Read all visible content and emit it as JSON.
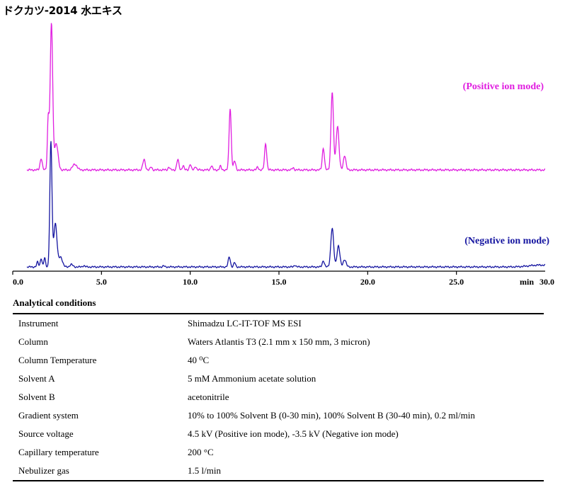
{
  "title": "ドクカツ-2014 水エキス",
  "chart_data": {
    "type": "line",
    "xlim": [
      0.0,
      30.0
    ],
    "xticks": [
      "0.0",
      "5.0",
      "10.0",
      "15.0",
      "20.0",
      "25.0"
    ],
    "xunit_label": "min",
    "xend_label": "30.0",
    "series": [
      {
        "name": "(Positive ion mode)",
        "color": "#e01ee0",
        "baseline_y": 240,
        "peaks": [
          {
            "t": 1.6,
            "h": 0.08,
            "w": 0.06
          },
          {
            "t": 2.0,
            "h": 0.35,
            "w": 0.05
          },
          {
            "t": 2.18,
            "h": 1.0,
            "w": 0.07
          },
          {
            "t": 2.45,
            "h": 0.18,
            "w": 0.1
          },
          {
            "t": 3.5,
            "h": 0.04,
            "w": 0.12
          },
          {
            "t": 7.4,
            "h": 0.07,
            "w": 0.07
          },
          {
            "t": 7.8,
            "h": 0.02,
            "w": 0.05
          },
          {
            "t": 8.8,
            "h": 0.02,
            "w": 0.05
          },
          {
            "t": 9.3,
            "h": 0.07,
            "w": 0.06
          },
          {
            "t": 9.6,
            "h": 0.03,
            "w": 0.05
          },
          {
            "t": 10.0,
            "h": 0.04,
            "w": 0.05
          },
          {
            "t": 10.3,
            "h": 0.025,
            "w": 0.05
          },
          {
            "t": 11.2,
            "h": 0.03,
            "w": 0.05
          },
          {
            "t": 11.7,
            "h": 0.025,
            "w": 0.05
          },
          {
            "t": 12.25,
            "h": 0.42,
            "w": 0.06
          },
          {
            "t": 12.5,
            "h": 0.06,
            "w": 0.06
          },
          {
            "t": 13.8,
            "h": 0.02,
            "w": 0.05
          },
          {
            "t": 14.25,
            "h": 0.18,
            "w": 0.06
          },
          {
            "t": 15.8,
            "h": 0.015,
            "w": 0.05
          },
          {
            "t": 17.5,
            "h": 0.15,
            "w": 0.06
          },
          {
            "t": 18.0,
            "h": 0.53,
            "w": 0.07
          },
          {
            "t": 18.3,
            "h": 0.3,
            "w": 0.08
          },
          {
            "t": 18.7,
            "h": 0.1,
            "w": 0.07
          }
        ]
      },
      {
        "name": "(Negative ion mode)",
        "color": "#1414a0",
        "baseline_y": 377,
        "peaks": [
          {
            "t": 1.4,
            "h": 0.04,
            "w": 0.05
          },
          {
            "t": 1.6,
            "h": 0.07,
            "w": 0.05
          },
          {
            "t": 1.8,
            "h": 0.07,
            "w": 0.05
          },
          {
            "t": 2.15,
            "h": 1.0,
            "w": 0.06
          },
          {
            "t": 2.4,
            "h": 0.35,
            "w": 0.09
          },
          {
            "t": 2.7,
            "h": 0.08,
            "w": 0.1
          },
          {
            "t": 3.3,
            "h": 0.02,
            "w": 0.08
          },
          {
            "t": 4.0,
            "h": 0.01,
            "w": 0.06
          },
          {
            "t": 8.5,
            "h": 0.008,
            "w": 0.05
          },
          {
            "t": 12.2,
            "h": 0.08,
            "w": 0.06
          },
          {
            "t": 12.5,
            "h": 0.035,
            "w": 0.05
          },
          {
            "t": 15.9,
            "h": 0.015,
            "w": 0.05
          },
          {
            "t": 17.5,
            "h": 0.05,
            "w": 0.06
          },
          {
            "t": 18.0,
            "h": 0.31,
            "w": 0.08
          },
          {
            "t": 18.35,
            "h": 0.17,
            "w": 0.08
          },
          {
            "t": 18.7,
            "h": 0.06,
            "w": 0.08
          },
          {
            "t": 29.7,
            "h": 0.015,
            "w": 0.6
          }
        ]
      }
    ]
  },
  "conditions": {
    "title": "Analytical conditions",
    "rows": [
      {
        "label": "Instrument",
        "value": "Shimadzu LC-IT-TOF MS ESI"
      },
      {
        "label": "Column",
        "value": "Waters Atlantis T3 (2.1 mm x 150 mm, 3 micron)"
      },
      {
        "label": "Column Temperature",
        "value": "40 ⁰C"
      },
      {
        "label": "Solvent A",
        "value": "5 mM Ammonium acetate solution"
      },
      {
        "label": "Solvent B",
        "value": "acetonitrile"
      },
      {
        "label": "Gradient system",
        "value": "10% to 100% Solvent B (0-30 min), 100% Solvent B (30-40 min), 0.2 ml/min"
      },
      {
        "label": "Source voltage",
        "value": "4.5 kV (Positive ion mode), -3.5 kV (Negative ion mode)"
      },
      {
        "label": "Capillary temperature",
        "value": "200 °C"
      },
      {
        "label": "Nebulizer gas",
        "value": "1.5 l/min"
      }
    ]
  }
}
